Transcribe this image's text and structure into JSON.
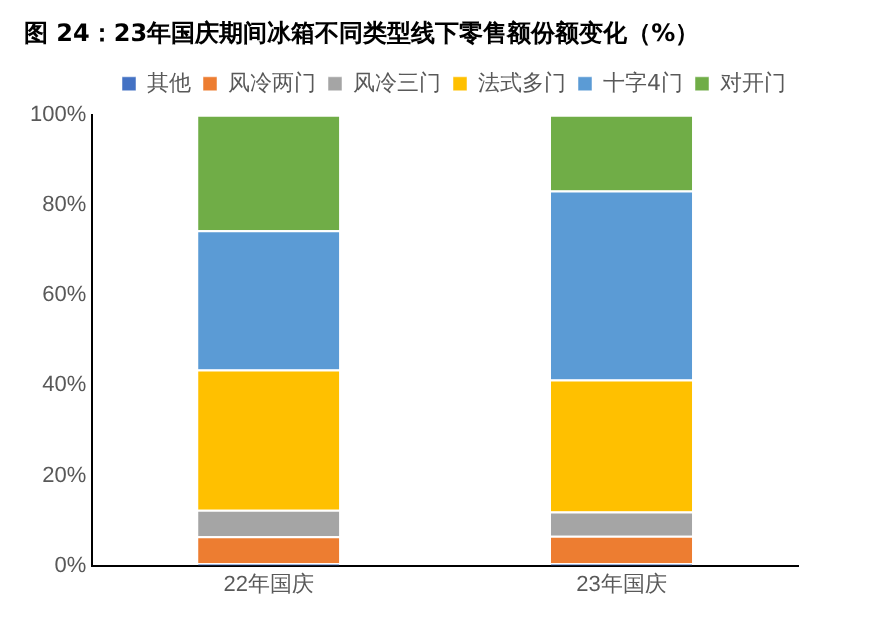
{
  "chart_data": {
    "type": "bar",
    "title": "图 24：23年国庆期间冰箱不同类型线下零售额份额变化（%）",
    "categories": [
      "22年国庆",
      "23年国庆"
    ],
    "stacked": true,
    "ylim": [
      0,
      100
    ],
    "yticks": [
      {
        "value": 0,
        "label": "0%"
      },
      {
        "value": 20,
        "label": "20%"
      },
      {
        "value": 40,
        "label": "40%"
      },
      {
        "value": 60,
        "label": "60%"
      },
      {
        "value": 80,
        "label": "80%"
      },
      {
        "value": 100,
        "label": "100%"
      }
    ],
    "grid": false,
    "legend": "top",
    "series": [
      {
        "name": "其他",
        "color": "#4472c4",
        "values": [
          0.5,
          0.5
        ]
      },
      {
        "name": "风冷两门",
        "color": "#ed7d31",
        "values": [
          6.0,
          6.1
        ]
      },
      {
        "name": "风冷三门",
        "color": "#a5a5a5",
        "values": [
          5.9,
          5.4
        ]
      },
      {
        "name": "法式多门",
        "color": "#ffc000",
        "values": [
          31.1,
          29.3
        ]
      },
      {
        "name": "十字4门",
        "color": "#5b9bd5",
        "values": [
          30.9,
          41.9
        ]
      },
      {
        "name": "对开门",
        "color": "#70ad47",
        "values": [
          25.6,
          16.8
        ]
      }
    ]
  }
}
